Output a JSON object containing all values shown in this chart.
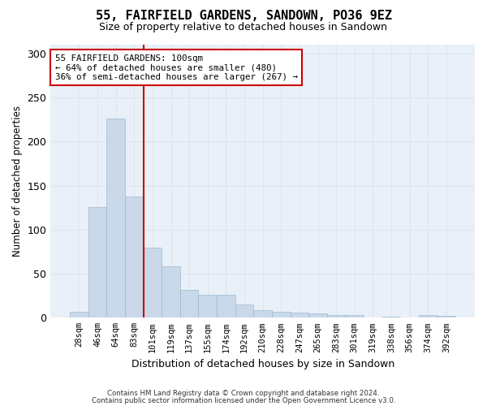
{
  "title": "55, FAIRFIELD GARDENS, SANDOWN, PO36 9EZ",
  "subtitle": "Size of property relative to detached houses in Sandown",
  "xlabel": "Distribution of detached houses by size in Sandown",
  "ylabel": "Number of detached properties",
  "footer_line1": "Contains HM Land Registry data © Crown copyright and database right 2024.",
  "footer_line2": "Contains public sector information licensed under the Open Government Licence v3.0.",
  "categories": [
    "28sqm",
    "46sqm",
    "64sqm",
    "83sqm",
    "101sqm",
    "119sqm",
    "137sqm",
    "155sqm",
    "174sqm",
    "192sqm",
    "210sqm",
    "228sqm",
    "247sqm",
    "265sqm",
    "283sqm",
    "301sqm",
    "319sqm",
    "338sqm",
    "356sqm",
    "374sqm",
    "392sqm"
  ],
  "values": [
    7,
    126,
    226,
    138,
    80,
    58,
    32,
    26,
    26,
    15,
    9,
    7,
    6,
    5,
    3,
    3,
    0,
    1,
    0,
    3,
    2
  ],
  "bar_color": "#c9d9ea",
  "bar_edge_color": "#9ab8d0",
  "grid_color": "#dce6f0",
  "background_color": "#eaf0f8",
  "vline_color": "#cc0000",
  "vline_x": 3.5,
  "annotation_text_line1": "55 FAIRFIELD GARDENS: 100sqm",
  "annotation_text_line2": "← 64% of detached houses are smaller (480)",
  "annotation_text_line3": "36% of semi-detached houses are larger (267) →",
  "annotation_box_color": "#cc0000",
  "ylim": [
    0,
    310
  ],
  "yticks": [
    0,
    50,
    100,
    150,
    200,
    250,
    300
  ]
}
